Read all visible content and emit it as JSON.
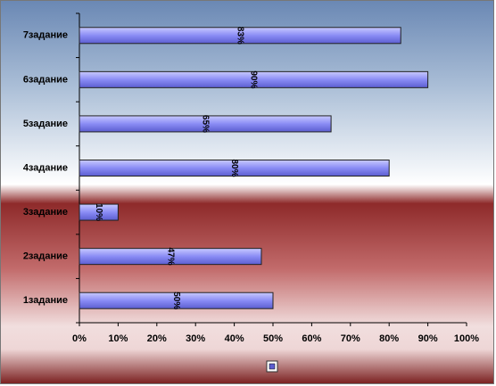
{
  "chart_data": {
    "type": "bar",
    "orientation": "horizontal",
    "categories": [
      "1задание",
      "2задание",
      "3задание",
      "4задание",
      "5задание",
      "6задание",
      "7задание"
    ],
    "values": [
      50,
      47,
      10,
      80,
      65,
      90,
      83
    ],
    "value_labels": [
      "50%",
      "47%",
      "10%",
      "80%",
      "65%",
      "90%",
      "83%"
    ],
    "color": "#8a8cf5",
    "xlim": [
      0,
      100
    ],
    "xticks": [
      {
        "value": 0,
        "label": "0%"
      },
      {
        "value": 10,
        "label": "10%"
      },
      {
        "value": 20,
        "label": "20%"
      },
      {
        "value": 30,
        "label": "30%"
      },
      {
        "value": 40,
        "label": "40%"
      },
      {
        "value": 50,
        "label": "50%"
      },
      {
        "value": 60,
        "label": "60%"
      },
      {
        "value": 70,
        "label": "70%"
      },
      {
        "value": 80,
        "label": "80%"
      },
      {
        "value": 90,
        "label": "90%"
      },
      {
        "value": 100,
        "label": "100%"
      }
    ],
    "grid": false
  }
}
